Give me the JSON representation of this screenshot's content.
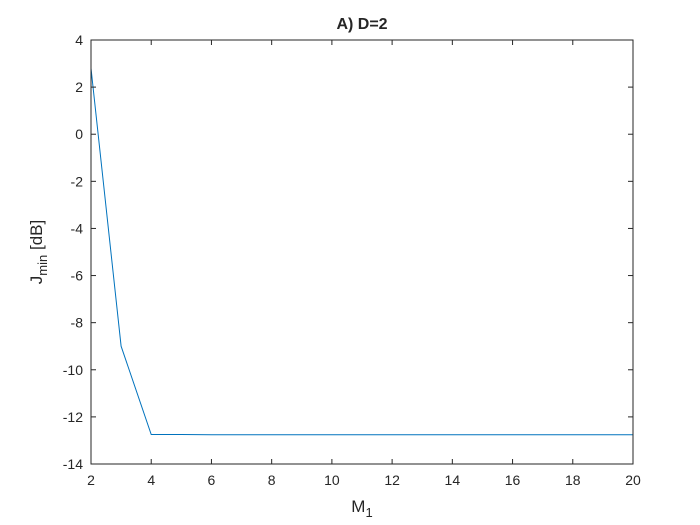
{
  "chart_data": {
    "type": "line",
    "title": "A) D=2",
    "xlabel": {
      "main": "M",
      "sub": "1"
    },
    "ylabel": {
      "main": "J",
      "sub": "min",
      "suffix": " [dB]"
    },
    "xlim": [
      2,
      20
    ],
    "ylim": [
      -14,
      4
    ],
    "xticks": [
      2,
      4,
      6,
      8,
      10,
      12,
      14,
      16,
      18,
      20
    ],
    "yticks": [
      -14,
      -12,
      -10,
      -8,
      -6,
      -4,
      -2,
      0,
      2,
      4
    ],
    "grid": false,
    "series": [
      {
        "color": "#0072bd",
        "x": [
          2,
          3,
          4,
          5,
          6,
          7,
          8,
          9,
          10,
          11,
          12,
          13,
          14,
          15,
          16,
          17,
          18,
          19,
          20
        ],
        "y": [
          2.8,
          -9.0,
          -12.75,
          -12.75,
          -12.76,
          -12.76,
          -12.76,
          -12.76,
          -12.76,
          -12.76,
          -12.76,
          -12.76,
          -12.76,
          -12.76,
          -12.76,
          -12.76,
          -12.76,
          -12.76,
          -12.76
        ]
      }
    ]
  }
}
